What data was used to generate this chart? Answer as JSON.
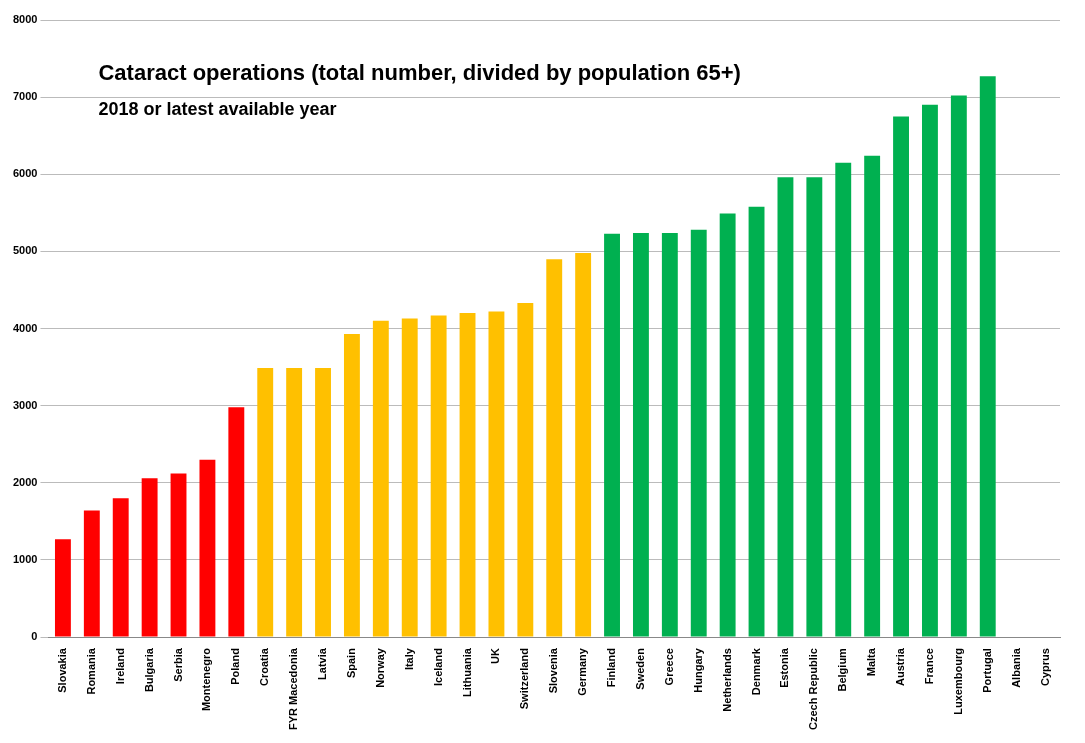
{
  "chart_data": {
    "type": "bar",
    "title": "Cataract operations (total number, divided by population 65+)",
    "subtitle": "2018 or latest available year",
    "categories": [
      "Slovakia",
      "Romania",
      "Ireland",
      "Bulgaria",
      "Serbia",
      "Montenegro",
      "Poland",
      "Croatia",
      "FYR Macedonia",
      "Latvia",
      "Spain",
      "Norway",
      "Italy",
      "Iceland",
      "Lithuania",
      "UK",
      "Switzerland",
      "Slovenia",
      "Germany",
      "Finland",
      "Sweden",
      "Greece",
      "Hungary",
      "Netherlands",
      "Denmark",
      "Estonia",
      "Czech Republic",
      "Belgium",
      "Malta",
      "Austria",
      "France",
      "Luxembourg",
      "Portugal",
      "Albania",
      "Cyprus"
    ],
    "values": [
      1270,
      1640,
      1800,
      2060,
      2120,
      2300,
      2980,
      3490,
      3490,
      3490,
      3930,
      4100,
      4130,
      4170,
      4200,
      4220,
      4330,
      4900,
      4980,
      5230,
      5240,
      5240,
      5280,
      5490,
      5580,
      5960,
      5960,
      6150,
      6240,
      6750,
      6900,
      7020,
      7270,
      null,
      null
    ],
    "colors": [
      "#ff0000",
      "#ff0000",
      "#ff0000",
      "#ff0000",
      "#ff0000",
      "#ff0000",
      "#ff0000",
      "#ffc000",
      "#ffc000",
      "#ffc000",
      "#ffc000",
      "#ffc000",
      "#ffc000",
      "#ffc000",
      "#ffc000",
      "#ffc000",
      "#ffc000",
      "#ffc000",
      "#ffc000",
      "#00b050",
      "#00b050",
      "#00b050",
      "#00b050",
      "#00b050",
      "#00b050",
      "#00b050",
      "#00b050",
      "#00b050",
      "#00b050",
      "#00b050",
      "#00b050",
      "#00b050",
      "#00b050",
      "#00b050",
      "#00b050"
    ],
    "ylim": [
      0,
      8000
    ],
    "yticks": [
      0,
      1000,
      2000,
      3000,
      4000,
      5000,
      6000,
      7000,
      8000
    ],
    "grid": "y",
    "legend": false
  }
}
